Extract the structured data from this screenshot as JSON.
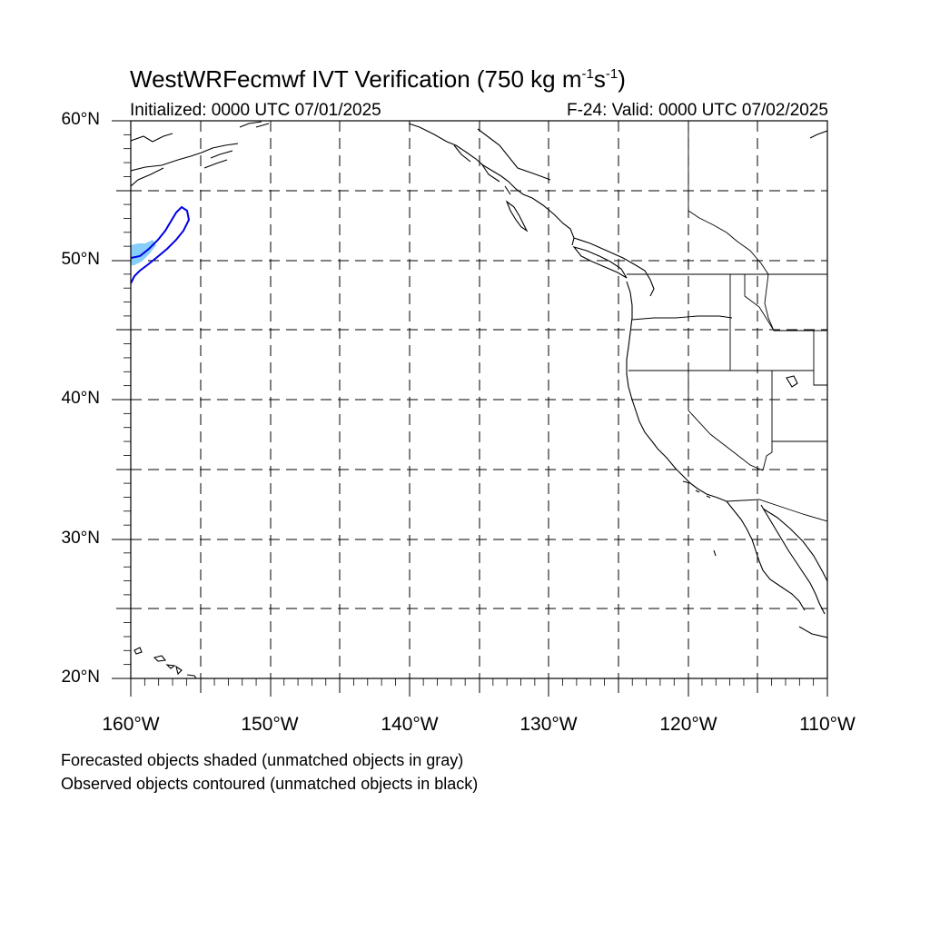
{
  "title": {
    "prefix": "WestWRFecmwf IVT Verification (750 kg m",
    "sup1": "-1",
    "mid": "s",
    "sup2": "-1",
    "suffix": ")"
  },
  "initialized": "Initialized: 0000 UTC 07/01/2025",
  "valid": "F-24: Valid: 0000 UTC 07/02/2025",
  "lat_labels": [
    "60°N",
    "50°N",
    "40°N",
    "30°N",
    "20°N"
  ],
  "lon_labels": [
    "160°W",
    "150°W",
    "140°W",
    "130°W",
    "120°W",
    "110°W"
  ],
  "map_extent": {
    "lon": [
      -160,
      -110
    ],
    "lat": [
      20,
      60
    ]
  },
  "gridlines": "dashed every 5 degrees",
  "colors": {
    "forecast_shade": "#87cefa",
    "observed_contour": "#0000e6",
    "coastline": "#000000"
  },
  "notes": {
    "line1": "Forecasted objects shaded (unmatched objects in gray)",
    "line2": "Observed objects contoured (unmatched objects in black)"
  }
}
